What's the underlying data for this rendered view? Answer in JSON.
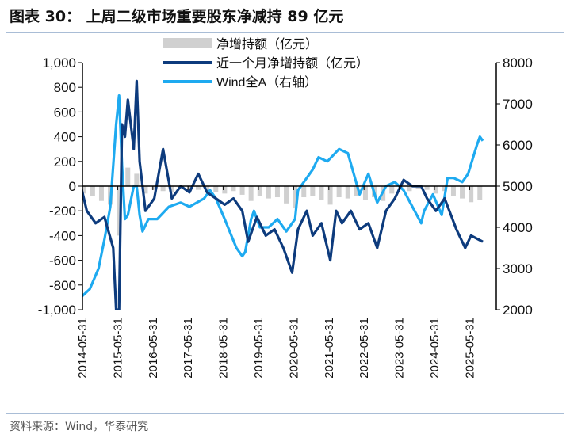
{
  "title": "图表 30：  上周二级市场重要股东净减持 89 亿元",
  "source": "资料来源：Wind，华泰研究",
  "chart_data": {
    "type": "line",
    "title": "上周二级市场重要股东净减持 89 亿元",
    "legend": [
      "净增持额（亿元）",
      "近一个月净增持额（亿元）",
      "Wind全A（右轴）"
    ],
    "legend_placement": "top-center",
    "colors": {
      "weekly": "#d0d0d0",
      "monthly": "#0d3b7d",
      "winda": "#1eaaf0"
    },
    "y_left": {
      "range": [
        -1000,
        1000
      ],
      "ticks": [
        "1,000",
        "800",
        "600",
        "400",
        "200",
        "0",
        "-200",
        "-400",
        "-600",
        "-800",
        "-1,000"
      ],
      "tick_values": [
        1000,
        800,
        600,
        400,
        200,
        0,
        -200,
        -400,
        -600,
        -800,
        -1000
      ]
    },
    "y_right": {
      "range": [
        2000,
        8000
      ],
      "ticks": [
        "8000",
        "7000",
        "6000",
        "5000",
        "4000",
        "3000",
        "2000"
      ],
      "tick_values": [
        8000,
        7000,
        6000,
        5000,
        4000,
        3000,
        2000
      ]
    },
    "x_ticks": [
      "2014-05-31",
      "2015-05-31",
      "2016-05-31",
      "2017-05-31",
      "2018-05-31",
      "2019-05-31",
      "2020-05-31",
      "2021-05-31",
      "2022-05-31",
      "2023-05-31",
      "2024-05-31",
      "2025-05-31"
    ],
    "x_range": [
      "2014-05",
      "2025-10"
    ],
    "series": [
      {
        "name": "近一个月净增持额（亿元）",
        "axis": "left",
        "x": [
          "2014-05",
          "2014-07",
          "2014-10",
          "2015-01",
          "2015-04",
          "2015-05",
          "2015-06",
          "2015-07",
          "2015-08",
          "2015-09",
          "2015-11",
          "2015-12",
          "2016-01",
          "2016-03",
          "2016-06",
          "2016-09",
          "2016-12",
          "2017-03",
          "2017-06",
          "2017-09",
          "2017-12",
          "2018-03",
          "2018-06",
          "2018-09",
          "2018-12",
          "2019-02",
          "2019-05",
          "2019-08",
          "2019-11",
          "2020-02",
          "2020-05",
          "2020-07",
          "2020-10",
          "2020-12",
          "2021-03",
          "2021-06",
          "2021-08",
          "2021-10",
          "2022-01",
          "2022-04",
          "2022-07",
          "2022-10",
          "2023-01",
          "2023-04",
          "2023-07",
          "2023-10",
          "2024-01",
          "2024-03",
          "2024-06",
          "2024-09",
          "2025-01",
          "2025-04",
          "2025-06",
          "2025-10"
        ],
        "values": [
          0,
          -200,
          -300,
          -250,
          -500,
          -1000,
          -1000,
          500,
          400,
          700,
          300,
          850,
          200,
          -200,
          -100,
          300,
          -100,
          0,
          -50,
          100,
          -50,
          -100,
          -150,
          -100,
          -200,
          -450,
          -250,
          -400,
          -350,
          -500,
          -700,
          -350,
          -200,
          -400,
          -300,
          -600,
          -200,
          -300,
          -200,
          -350,
          -300,
          -500,
          -200,
          -100,
          50,
          0,
          0,
          -100,
          -200,
          -100,
          -350,
          -500,
          -400,
          -450
        ]
      },
      {
        "name": "Wind全A（右轴）",
        "axis": "right",
        "x": [
          "2014-05",
          "2014-08",
          "2014-11",
          "2015-01",
          "2015-03",
          "2015-05",
          "2015-06",
          "2015-07",
          "2015-08",
          "2015-09",
          "2015-11",
          "2015-12",
          "2016-01",
          "2016-02",
          "2016-04",
          "2016-07",
          "2016-11",
          "2017-03",
          "2017-06",
          "2017-11",
          "2018-01",
          "2018-03",
          "2018-06",
          "2018-10",
          "2018-12",
          "2019-01",
          "2019-03",
          "2019-04",
          "2019-06",
          "2019-09",
          "2019-12",
          "2020-03",
          "2020-06",
          "2020-07",
          "2020-09",
          "2020-12",
          "2021-02",
          "2021-05",
          "2021-09",
          "2021-12",
          "2022-04",
          "2022-07",
          "2022-10",
          "2023-01",
          "2023-04",
          "2023-07",
          "2023-10",
          "2024-01",
          "2024-02",
          "2024-05",
          "2024-08",
          "2024-10",
          "2024-12",
          "2025-03",
          "2025-05",
          "2025-08",
          "2025-09",
          "2025-10"
        ],
        "values": [
          2300,
          2500,
          3000,
          3700,
          4500,
          6500,
          7200,
          5500,
          4200,
          4300,
          5000,
          5000,
          4300,
          3900,
          4200,
          4200,
          4500,
          4600,
          4500,
          4700,
          4900,
          4700,
          4200,
          3500,
          3300,
          3400,
          4200,
          4400,
          4000,
          4000,
          4200,
          3900,
          4200,
          4900,
          5100,
          5400,
          5700,
          5600,
          5900,
          5800,
          4800,
          5300,
          4600,
          5000,
          5100,
          4900,
          4500,
          4100,
          4400,
          4800,
          4300,
          5200,
          5200,
          5100,
          5300,
          6000,
          6200,
          6100
        ]
      },
      {
        "name": "净增持额（亿元）",
        "axis": "left",
        "type": "bar",
        "x": [
          "2014-06",
          "2014-09",
          "2014-12",
          "2015-03",
          "2015-06",
          "2015-09",
          "2015-12",
          "2016-03",
          "2016-06",
          "2016-09",
          "2016-12",
          "2017-03",
          "2017-06",
          "2017-09",
          "2017-12",
          "2018-03",
          "2018-06",
          "2018-09",
          "2018-12",
          "2019-03",
          "2019-06",
          "2019-09",
          "2019-12",
          "2020-03",
          "2020-06",
          "2020-09",
          "2020-12",
          "2021-03",
          "2021-06",
          "2021-09",
          "2021-12",
          "2022-03",
          "2022-06",
          "2022-09",
          "2022-12",
          "2023-03",
          "2023-06",
          "2023-09",
          "2023-12",
          "2024-03",
          "2024-06",
          "2024-09",
          "2024-12",
          "2025-03",
          "2025-06",
          "2025-09"
        ],
        "values": [
          -60,
          -80,
          -120,
          -150,
          -400,
          150,
          100,
          -60,
          -30,
          -40,
          -50,
          -20,
          -40,
          -30,
          -40,
          -50,
          -60,
          -40,
          -70,
          -120,
          -80,
          -100,
          -90,
          -140,
          -180,
          -90,
          -80,
          -110,
          -150,
          -90,
          -100,
          -80,
          -110,
          -90,
          -120,
          -60,
          -30,
          -40,
          -20,
          -30,
          -60,
          -40,
          -80,
          -100,
          -130,
          -110
        ]
      }
    ]
  }
}
